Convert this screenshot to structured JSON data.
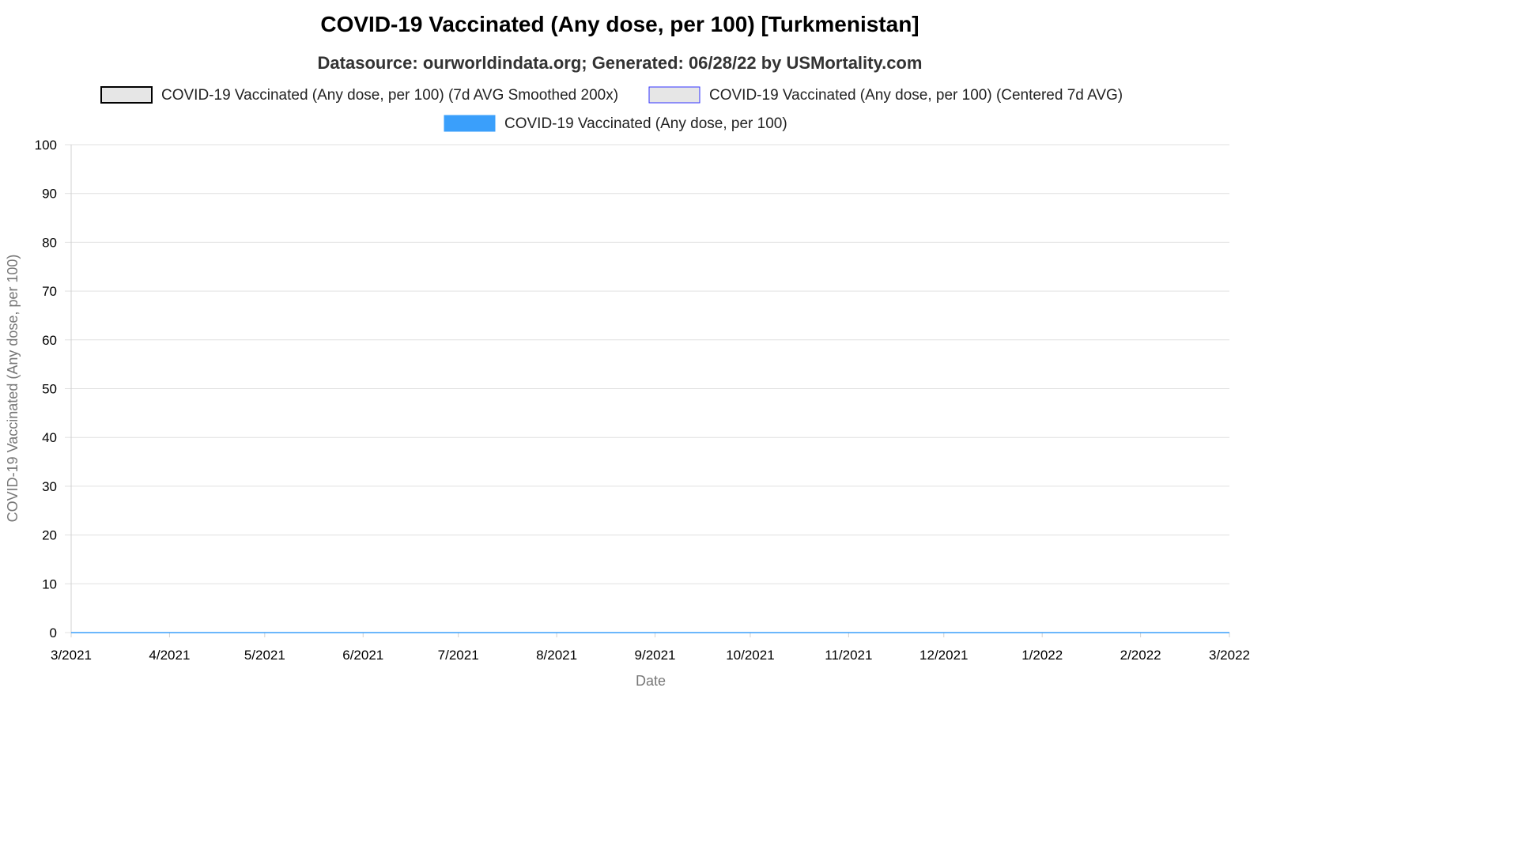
{
  "chart_data": {
    "type": "line",
    "title": "COVID-19 Vaccinated (Any dose, per 100) [Turkmenistan]",
    "subtitle": "Datasource: ourworldindata.org; Generated: 06/28/22 by USMortality.com",
    "xlabel": "Date",
    "ylabel": "COVID-19 Vaccinated (Any dose, per 100)",
    "ylim": [
      0,
      100
    ],
    "xlim": [
      "2021-03-01",
      "2022-03-01"
    ],
    "y_ticks": [
      "100",
      "90",
      "80",
      "70",
      "60",
      "50",
      "40",
      "30",
      "20",
      "10",
      "0"
    ],
    "x_tick_labels": [
      "3/2021",
      "4/2021",
      "5/2021",
      "6/2021",
      "7/2021",
      "8/2021",
      "9/2021",
      "10/2021",
      "11/2021",
      "12/2021",
      "1/2022",
      "2/2022",
      "3/2022"
    ],
    "x_tick_dates": [
      "2021-03-01",
      "2021-04-01",
      "2021-05-01",
      "2021-06-01",
      "2021-07-01",
      "2021-08-01",
      "2021-09-01",
      "2021-10-01",
      "2021-11-01",
      "2021-12-01",
      "2022-01-01",
      "2022-02-01",
      "2022-03-01"
    ],
    "grid": true,
    "legend_position": "top",
    "series": [
      {
        "name": "COVID-19 Vaccinated (Any dose, per 100) (7d AVG Smoothed 200x)",
        "style": "line",
        "color": "#000000",
        "fill": "#e6e6e6",
        "x": [],
        "values": []
      },
      {
        "name": "COVID-19 Vaccinated (Any dose, per 100) (Centered 7d AVG)",
        "style": "line",
        "color": "#3333ff",
        "fill": "#e6e6e6",
        "x": [],
        "values": []
      },
      {
        "name": "COVID-19 Vaccinated (Any dose, per 100)",
        "style": "line",
        "color": "#3a9ffb",
        "fill": "#3a9ffb",
        "x": [
          "2021-03-01",
          "2022-03-01"
        ],
        "values": [
          0,
          0
        ]
      }
    ]
  }
}
